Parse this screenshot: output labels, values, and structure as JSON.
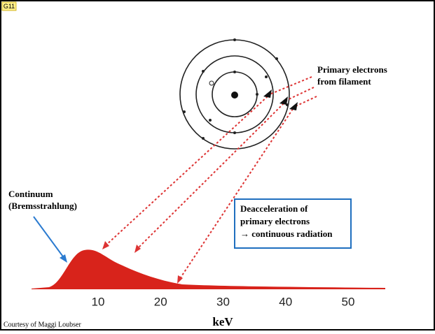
{
  "slide_tag": "G11",
  "atom_label": {
    "lines": [
      "Primary electrons",
      "from filament"
    ]
  },
  "continuum_label": {
    "lines": [
      "Continuum",
      "(Bremsstrahlung)"
    ]
  },
  "box_label": {
    "lines": [
      "Deacceleration of",
      "primary electrons",
      "→ continuous radiation"
    ]
  },
  "axis": {
    "ticks": [
      10,
      20,
      30,
      40,
      50
    ],
    "label": "keV"
  },
  "credit": "Courtesy of Maggi Loubser"
}
